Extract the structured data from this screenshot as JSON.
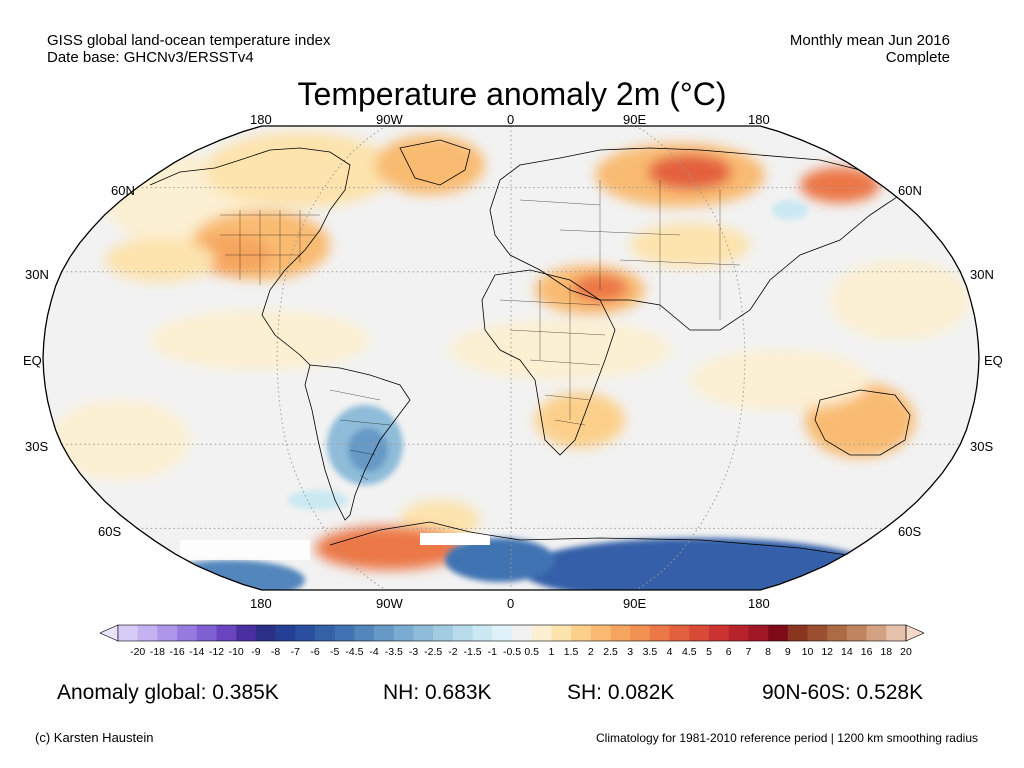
{
  "header": {
    "line1_left": "GISS global land-ocean temperature index",
    "line2_left": "Date base: GHCNv3/ERSSTv4",
    "line1_right": "Monthly mean Jun 2016",
    "line2_right": "Complete"
  },
  "title": "Temperature anomaly 2m (°C)",
  "axes": {
    "lon_labels": [
      "180",
      "90W",
      "0",
      "90E",
      "180"
    ],
    "lat_labels": [
      "60N",
      "30N",
      "EQ",
      "30S",
      "60S"
    ]
  },
  "colorbar": {
    "ticks": [
      "-20",
      "-18",
      "-16",
      "-14",
      "-12",
      "-10",
      "-9",
      "-8",
      "-7",
      "-6",
      "-5",
      "-4.5",
      "-4",
      "-3.5",
      "-3",
      "-2.5",
      "-2",
      "-1.5",
      "-1",
      "-0.5",
      "0.5",
      "1",
      "1.5",
      "2",
      "2.5",
      "3",
      "3.5",
      "4",
      "4.5",
      "5",
      "6",
      "7",
      "8",
      "9",
      "10",
      "12",
      "14",
      "16",
      "18",
      "20"
    ],
    "colors": [
      "#d7ccf7",
      "#c4b2f1",
      "#ae97ea",
      "#967ae0",
      "#7f5fd2",
      "#6a45bf",
      "#4a2fa0",
      "#2c2f86",
      "#243f94",
      "#2a4f9f",
      "#3561a9",
      "#4173b2",
      "#5386bc",
      "#6699c6",
      "#7aabd0",
      "#8ebcd9",
      "#a2cce2",
      "#b7dbeb",
      "#cbe8f3",
      "#e0f2f9",
      "#f2f2f2",
      "#fcf0d2",
      "#fde3ad",
      "#fcd08b",
      "#f9bb72",
      "#f6a55f",
      "#f28f52",
      "#ec7747",
      "#e3603e",
      "#d84a36",
      "#cc3330",
      "#b8222a",
      "#a01725",
      "#7f0a18",
      "#8a3520",
      "#9a5030",
      "#ad6b45",
      "#c08560",
      "#d4a283",
      "#e7c2ab"
    ],
    "low_end_color": "#eae4fb",
    "high_end_color": "#f6d8c8"
  },
  "stats": {
    "global": "Anomaly global: 0.385K",
    "nh": "NH: 0.683K",
    "sh": "SH: 0.082K",
    "arctic": "90N-60S: 0.528K"
  },
  "footer": {
    "left": "(c) Karsten Haustein",
    "right": "Climatology for 1981-2010 reference period | 1200 km smoothing radius"
  },
  "colors": {
    "ocean_neutral": "#f2f2f2",
    "warm_light": "#fcf0d2",
    "warm_mid": "#fde3ad",
    "warm_strong": "#f6a55f",
    "warm_hot": "#e3603e",
    "cool_light": "#cbe8f3",
    "cool_mid": "#8ebcd9",
    "cool_strong": "#3561a9",
    "missing": "#ffffff"
  }
}
